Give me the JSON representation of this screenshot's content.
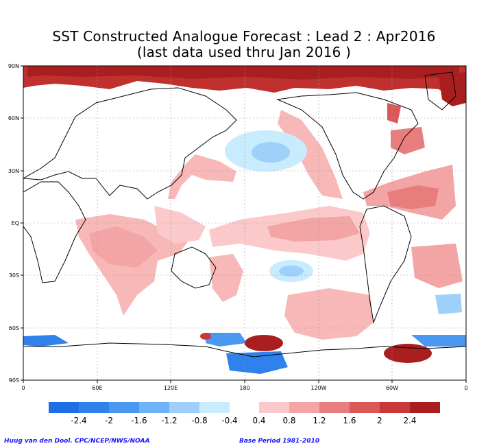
{
  "title": {
    "line1": "SST Constructed Analogue Forecast : Lead 2 : Apr2016",
    "line2": "(last data used thru Jan 2016 )"
  },
  "axes": {
    "lat_labels": [
      "90N",
      "60N",
      "30N",
      "EQ",
      "30S",
      "60S",
      "90S"
    ],
    "lon_labels": [
      "0",
      "60E",
      "120E",
      "180",
      "120W",
      "60W",
      "0"
    ]
  },
  "colorbar": {
    "labels": [
      "-2.4",
      "-2",
      "-1.6",
      "-1.2",
      "-0.8",
      "-0.4",
      "0.4",
      "0.8",
      "1.2",
      "1.6",
      "2",
      "2.4"
    ],
    "negative_colors": [
      "#1e6ee6",
      "#2f82ec",
      "#4a98f2",
      "#70b4f7",
      "#9ed0fa",
      "#c8ecfd"
    ],
    "positive_colors": [
      "#fbc9c9",
      "#f3a4a4",
      "#e87d7d",
      "#dc5757",
      "#c93838",
      "#a91f1f"
    ]
  },
  "footer": {
    "credit": "Huug van den Dool. CPC/NCEP/NWS/NOAA",
    "base_period": "Base Period 1981-2010"
  },
  "colors": {
    "warm_strong": "#b22222",
    "warm_light": "#f8b8b8",
    "cool_light": "#9ed0fa",
    "cool_strong": "#2f82ec",
    "coast": "#000000",
    "grid": "#999999"
  }
}
